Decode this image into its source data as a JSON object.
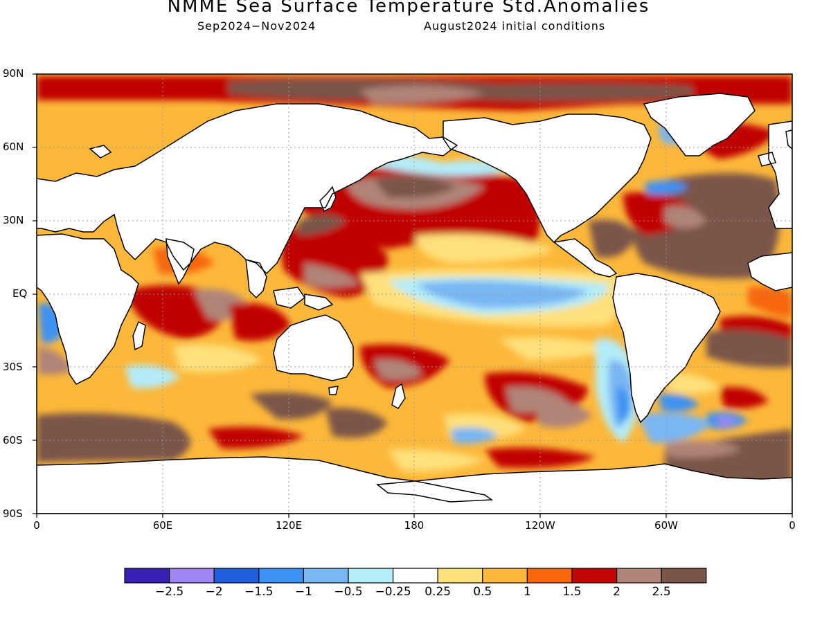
{
  "title": "NMME Sea Surface Temperature Std.Anomalies",
  "period": "Sep2024−Nov2024",
  "initial_conditions": "August2024 initial conditions",
  "lat_labels": [
    "90N",
    "60N",
    "30N",
    "EQ",
    "30S",
    "60S",
    "90S"
  ],
  "lon_labels": [
    "0",
    "60E",
    "120E",
    "180",
    "120W",
    "60W",
    "0"
  ],
  "legend": {
    "colors": [
      "#3a1fb5",
      "#9f86f2",
      "#2060e0",
      "#3c92f2",
      "#78b6f4",
      "#b4ecf8",
      "#ffffff",
      "#ffe07a",
      "#fcb83a",
      "#f8660a",
      "#c00606",
      "#b08478",
      "#7a5548"
    ],
    "labels": [
      "−2.5",
      "−2",
      "−1.5",
      "−1",
      "−0.5",
      "−0.25",
      "0.25",
      "0.5",
      "1",
      "1.5",
      "2",
      "2.5"
    ]
  },
  "colors": {
    "land": "#ffffff",
    "ocean_base": "#fcb83a",
    "warm_1": "#ffe07a",
    "warm_2": "#f8660a",
    "warm_3": "#c00606",
    "warm_4": "#b08478",
    "warm_5": "#7a5548",
    "cool_1": "#b4ecf8",
    "cool_2": "#78b6f4",
    "cool_3": "#3c92f2",
    "cool_4": "#2060e0",
    "cool_5": "#9f86f2"
  }
}
